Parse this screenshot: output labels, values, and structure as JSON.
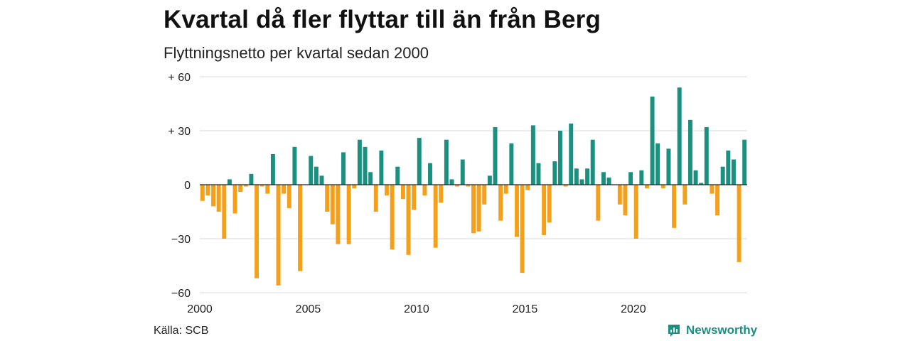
{
  "title": "Kvartal då fler flyttar till än från Berg",
  "subtitle": "Flyttningsnetto per kvartal sedan 2000",
  "source": "Källa: SCB",
  "brand": "Newsworthy",
  "colors": {
    "positive": "#1a9080",
    "negative": "#f5a01a",
    "grid": "#d9d9d9",
    "axis": "#222222"
  },
  "icons": {
    "brand": "newsworthy-logo-icon"
  },
  "chart_data": {
    "type": "bar",
    "ylim": [
      -60,
      60
    ],
    "ytick_values": [
      60,
      30,
      0,
      -30,
      -60
    ],
    "ytick_labels": [
      "+ 60",
      "+ 30",
      "0",
      "−30",
      "−60"
    ],
    "xtick_labels": [
      "2000",
      "2005",
      "2010",
      "2015",
      "2020"
    ],
    "xtick_quarter_index": [
      0,
      20,
      40,
      60,
      80
    ],
    "x_start_quarter": "2000 Q1",
    "grid": true,
    "legend": "none",
    "values": [
      -9,
      -6,
      -12,
      -15,
      -30,
      3,
      -16,
      -4,
      -1,
      6,
      -52,
      -1,
      -5,
      17,
      -56,
      -5,
      -13,
      21,
      -48,
      0,
      16,
      10,
      5,
      -15,
      -22,
      -33,
      18,
      -33,
      -2,
      25,
      21,
      7,
      -15,
      19,
      -6,
      -36,
      10,
      -8,
      -39,
      -14,
      26,
      -6,
      12,
      -35,
      -10,
      25,
      3,
      -1,
      14,
      -1,
      -27,
      -26,
      -11,
      5,
      32,
      -20,
      -5,
      23,
      -29,
      -49,
      -3,
      33,
      12,
      -28,
      -21,
      13,
      30,
      -1,
      34,
      9,
      3,
      9,
      25,
      -20,
      7,
      4,
      0,
      -11,
      -17,
      7,
      -30,
      8,
      -2,
      49,
      23,
      -2,
      20,
      -24,
      54,
      -11,
      36,
      8,
      1,
      32,
      -5,
      -17,
      10,
      19,
      14,
      -43,
      25
    ]
  }
}
